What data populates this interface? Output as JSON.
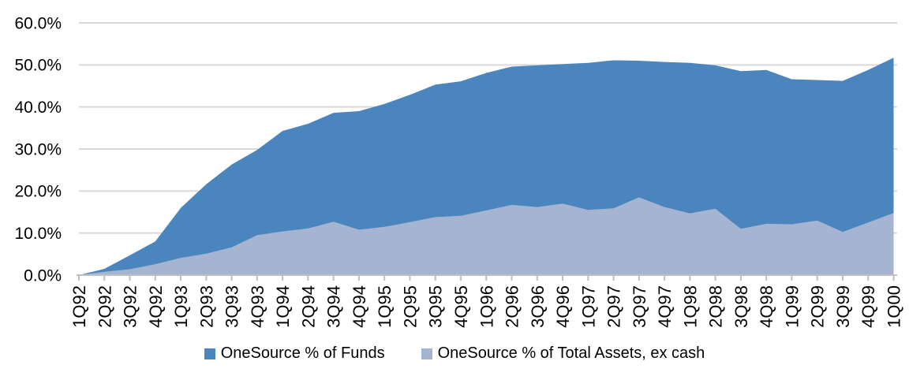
{
  "chart_data": {
    "type": "area",
    "categories": [
      "1Q92",
      "2Q92",
      "3Q92",
      "4Q92",
      "1Q93",
      "2Q93",
      "3Q93",
      "4Q93",
      "1Q94",
      "2Q94",
      "3Q94",
      "4Q94",
      "1Q95",
      "2Q95",
      "3Q95",
      "4Q95",
      "1Q96",
      "2Q96",
      "3Q96",
      "4Q96",
      "1Q97",
      "2Q97",
      "3Q97",
      "4Q97",
      "1Q98",
      "2Q98",
      "3Q98",
      "4Q98",
      "1Q99",
      "2Q99",
      "3Q99",
      "4Q99",
      "1Q00"
    ],
    "series": [
      {
        "name": "OneSource % of Funds",
        "color": "#4A85BE",
        "values": [
          0.0,
          1.5,
          4.7,
          8.0,
          16.0,
          21.6,
          26.3,
          29.8,
          34.3,
          36.0,
          38.6,
          39.0,
          40.7,
          42.9,
          45.3,
          46.1,
          48.1,
          49.6,
          49.9,
          50.2,
          50.5,
          51.1,
          51.0,
          50.7,
          50.5,
          49.9,
          48.5,
          48.8,
          46.6,
          46.4,
          46.2,
          48.8,
          51.7
        ]
      },
      {
        "name": "OneSource % of Total Assets, ex cash",
        "color": "#A4B4D1",
        "values": [
          0.0,
          0.8,
          1.4,
          2.6,
          4.1,
          5.1,
          6.6,
          9.5,
          10.4,
          11.1,
          12.7,
          10.8,
          11.5,
          12.6,
          13.8,
          14.1,
          15.4,
          16.7,
          16.2,
          17.0,
          15.5,
          15.9,
          18.5,
          16.2,
          14.7,
          15.8,
          11.0,
          12.2,
          12.1,
          13.0,
          10.3,
          12.5,
          14.8
        ]
      }
    ],
    "ylim": [
      0,
      60
    ],
    "ytick_step": 10,
    "ytick_labels": [
      "0.0%",
      "10.0%",
      "20.0%",
      "30.0%",
      "40.0%",
      "50.0%",
      "60.0%"
    ],
    "grid": true,
    "legend_position": "bottom",
    "gridline_color": "#D9D9D9",
    "axis_color": "#BFBFBF",
    "text_color": "#000000"
  }
}
